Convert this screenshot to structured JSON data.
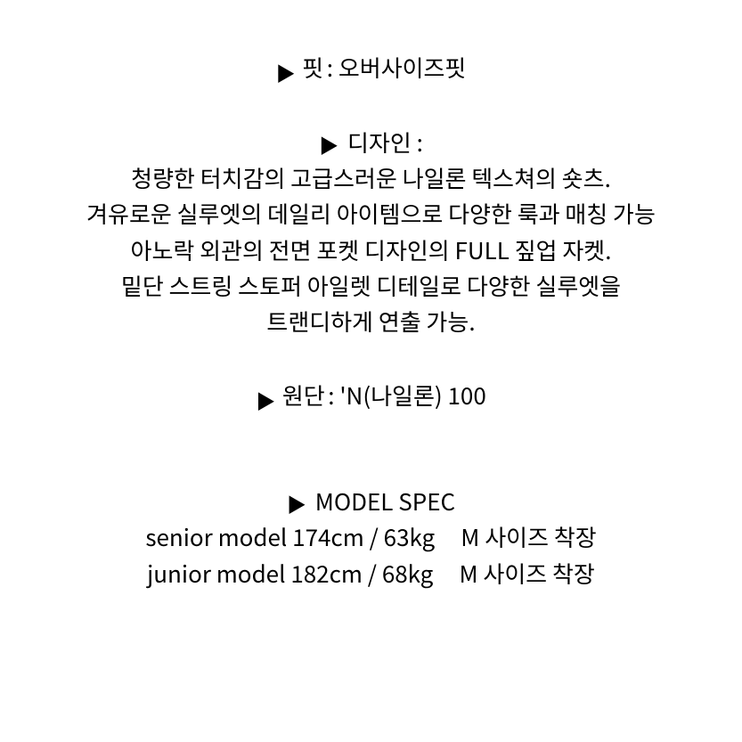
{
  "bullet": "▶",
  "fit": {
    "label": "핏",
    "value": "오버사이즈핏"
  },
  "design": {
    "label": "디자인",
    "lines": [
      "청량한 터치감의 고급스러운 나일론 텍스쳐의 숏츠.",
      "겨유로운 실루엣의 데일리 아이템으로 다양한 룩과 매칭 가능",
      "아노락 외관의 전면 포켓 디자인의 FULL 짚업 자켓.",
      "밑단 스트링 스토퍼 아일렛 디테일로 다양한 실루엣을",
      "트랜디하게 연출 가능."
    ]
  },
  "fabric": {
    "label": "원단",
    "value": "'N(나일론) 100"
  },
  "modelSpec": {
    "heading": "MODEL SPEC",
    "senior": {
      "label": "senior model",
      "height": "174cm",
      "weight": "63kg",
      "size": "M 사이즈 착장"
    },
    "junior": {
      "label": "junior model",
      "height": "182cm",
      "weight": "68kg",
      "size": "M 사이즈 착장"
    }
  },
  "colors": {
    "background": "#ffffff",
    "text": "#000000"
  },
  "typography": {
    "body_fontsize": 26,
    "line_height": 1.55
  }
}
